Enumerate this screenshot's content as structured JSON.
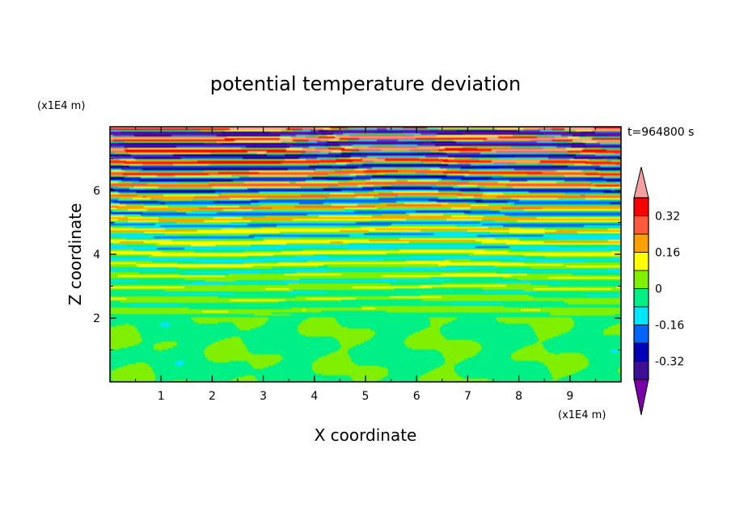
{
  "chart_data": {
    "type": "heatmap",
    "title": "potential temperature deviation",
    "xlabel": "X coordinate",
    "ylabel": "Z coordinate",
    "x_unit": "(x1E4 m)",
    "y_unit": "(x1E4 m)",
    "time_label": "t=964800 s",
    "xlim": [
      0,
      10
    ],
    "ylim": [
      0,
      8
    ],
    "x_ticks": [
      1,
      2,
      3,
      4,
      5,
      6,
      7,
      8,
      9
    ],
    "y_ticks": [
      2,
      4,
      6
    ],
    "colorbar": {
      "levels": [
        -0.4,
        -0.32,
        -0.24,
        -0.16,
        -0.08,
        0,
        0.08,
        0.16,
        0.24,
        0.32,
        0.4
      ],
      "colors": [
        "#7a00a8",
        "#3c0f96",
        "#0000b4",
        "#0064ff",
        "#00e6ff",
        "#00f086",
        "#80f000",
        "#ffff00",
        "#ffa000",
        "#ff5a3c",
        "#ff0000",
        "#f5a0a0"
      ],
      "tick_labels": [
        "0.32",
        "0.16",
        "0",
        "-0.16",
        "-0.32"
      ],
      "tick_values": [
        0.32,
        0.16,
        0,
        -0.16,
        -0.32
      ],
      "extend": "both"
    }
  }
}
